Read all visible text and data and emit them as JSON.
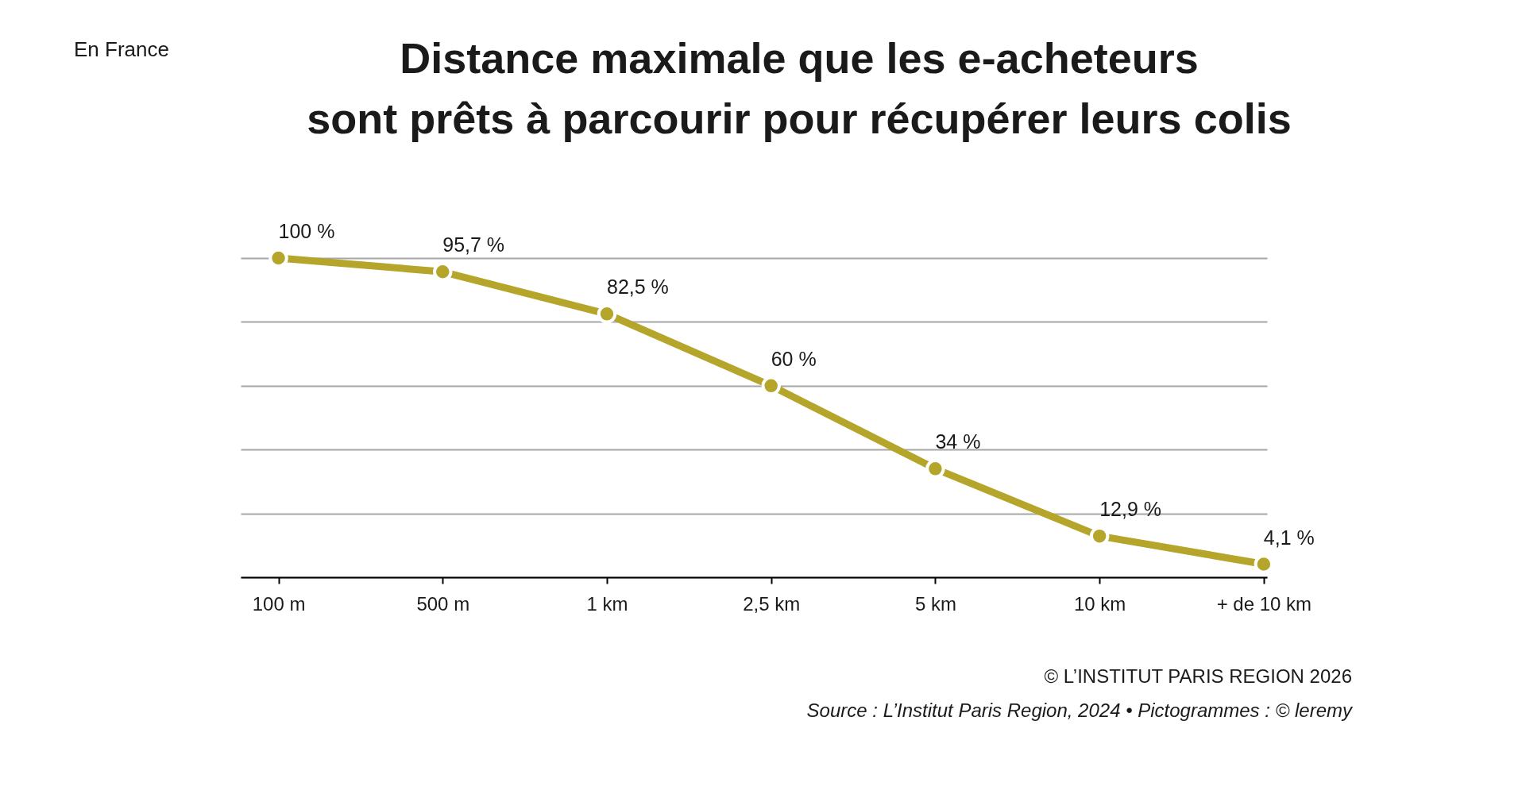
{
  "chart_data": {
    "type": "line",
    "title": "Distance maximale que les e-acheteurs\nsont prêts à parcourir pour récupérer leurs colis",
    "categories": [
      "100 m",
      "500 m",
      "1 km",
      "2,5 km",
      "5 km",
      "10 km",
      "+ de 10 km"
    ],
    "values": [
      100,
      95.7,
      82.5,
      60,
      34,
      12.9,
      4.1
    ],
    "value_labels": [
      "100 %",
      "95,7 %",
      "82,5 %",
      "60 %",
      "34 %",
      "12,9 %",
      "4,1 %"
    ],
    "color": "#b5a62b",
    "marker": "circle",
    "line_style": "solid",
    "ylim": [
      0,
      100
    ],
    "yticks": [
      0,
      20,
      40,
      60,
      80,
      100
    ],
    "grid": "y",
    "tick_labels": "x",
    "annotations": [
      "En France",
      "© L’INSTITUT PARIS REGION 2026",
      "Source : L’Institut Paris Region, 2024 • Pictogrammes : © leremy"
    ]
  }
}
